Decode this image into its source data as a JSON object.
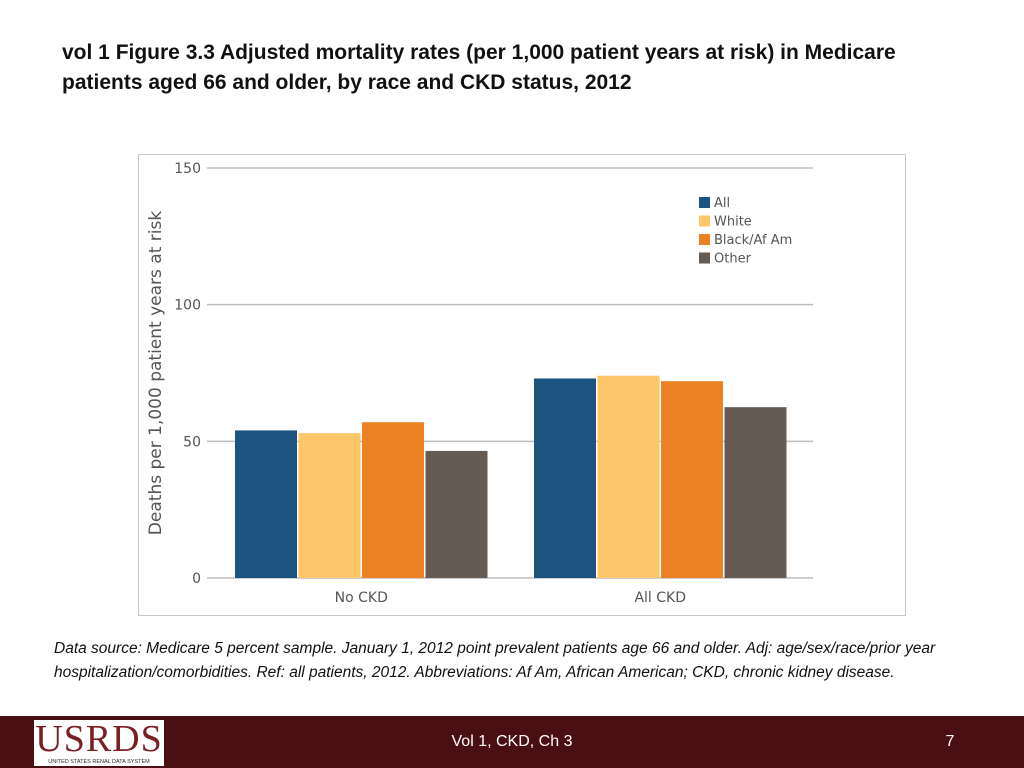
{
  "slide": {
    "title": "vol 1 Figure 3.3  Adjusted mortality rates (per 1,000 patient years at risk) in Medicare patients aged 66 and older, by race and CKD status, 2012",
    "caption": "Data source: Medicare 5 percent sample. January 1, 2012 point prevalent patients age 66 and older. Adj: age/sex/race/prior year hospitalization/comorbidities. Ref: all patients, 2012. Abbreviations: Af Am, African American; CKD, chronic kidney disease."
  },
  "chart_data": {
    "type": "bar",
    "title": "",
    "xlabel": "",
    "ylabel": "Deaths per 1,000 patient years at risk",
    "ylim": [
      0,
      150
    ],
    "yticks": [
      0,
      50,
      100,
      150
    ],
    "grid": true,
    "legend_position": "top-right",
    "categories": [
      "No CKD",
      "All CKD"
    ],
    "series": [
      {
        "name": "All",
        "color": "#1b5480",
        "values": [
          54,
          73
        ]
      },
      {
        "name": "White",
        "color": "#fdc66b",
        "values": [
          53,
          74
        ]
      },
      {
        "name": "Black/Af Am",
        "color": "#ec8224",
        "values": [
          57,
          72
        ]
      },
      {
        "name": "Other",
        "color": "#655b52",
        "values": [
          46.5,
          62.5
        ]
      }
    ]
  },
  "footer": {
    "logo_text": "USRDS",
    "logo_subtext": "UNITED STATES RENAL DATA SYSTEM",
    "center_text": "Vol 1, CKD, Ch 3",
    "page_number": "7"
  }
}
